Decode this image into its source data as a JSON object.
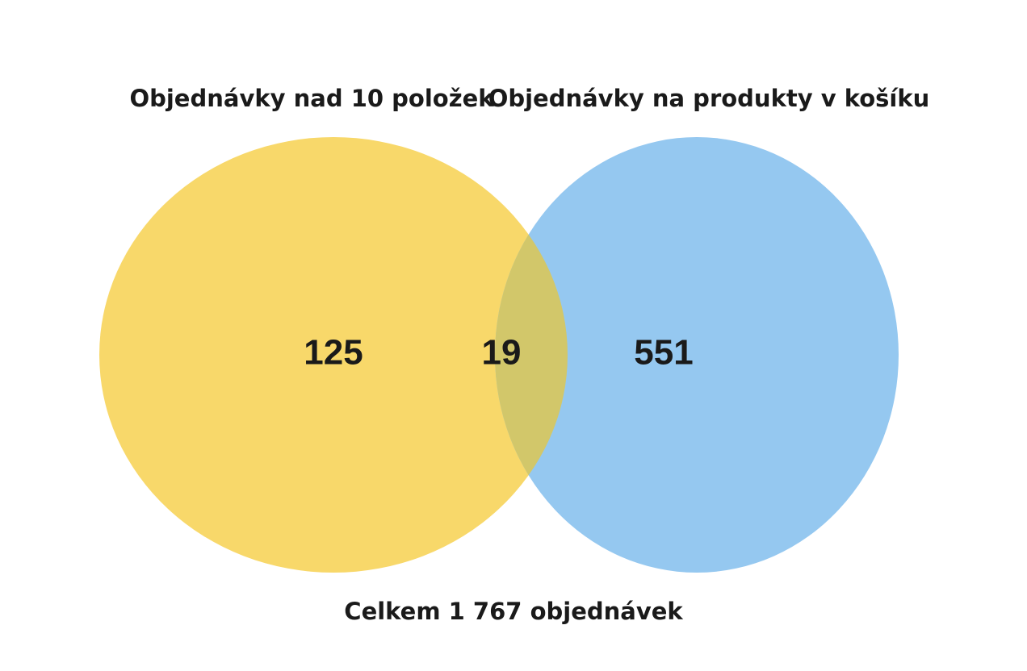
{
  "chart_data": {
    "type": "venn",
    "sets": [
      {
        "name": "Objednávky nad 10 položek",
        "color": "#f8d86a",
        "value": 125
      },
      {
        "name": "Objednávky na produkty v košíku",
        "color": "#95c8f0",
        "value": 551
      }
    ],
    "intersection": {
      "value": 19,
      "color": "#d2c76a"
    },
    "annotation": "Celkem 1 767 objednávek"
  }
}
